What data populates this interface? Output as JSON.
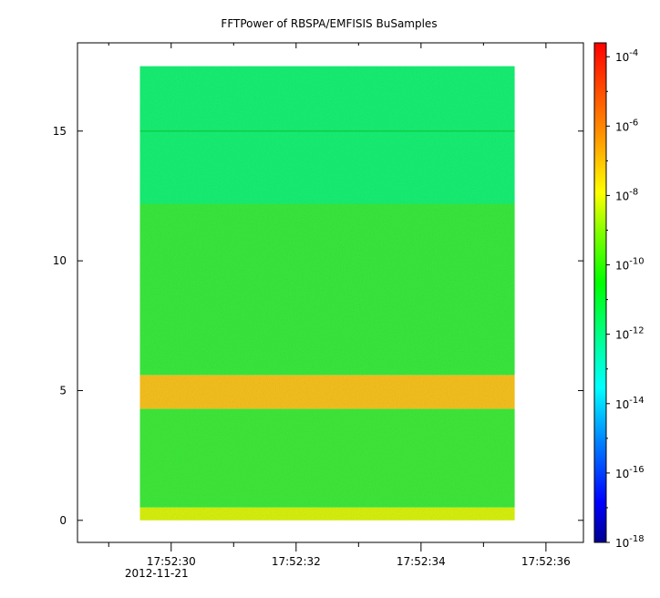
{
  "chart_data": {
    "type": "heatmap",
    "title": "FFTPower of RBSPA/EMFISIS  BuSamples",
    "xlabel": "",
    "ylabel": "",
    "x_ticks": [
      {
        "label": "17:52:30",
        "sublabel": "2012-11-21",
        "value": 30
      },
      {
        "label": "17:52:32",
        "value": 32
      },
      {
        "label": "17:52:34",
        "value": 34
      },
      {
        "label": "17:52:36",
        "value": 36
      }
    ],
    "x_minor_ticks": [
      29,
      31,
      33,
      35
    ],
    "xlim": [
      28.5,
      36.6
    ],
    "data_x_range": [
      29.5,
      35.5
    ],
    "y_ticks": [
      0,
      5,
      10,
      15
    ],
    "ylim": [
      -0.85,
      18.4
    ],
    "data_y_range": [
      0,
      17.5
    ],
    "colorbar": {
      "scale": "log",
      "min_exponent": -18,
      "max_exponent": -3.6,
      "tick_exponents": [
        -4,
        -6,
        -8,
        -10,
        -12,
        -14,
        -16,
        -18
      ],
      "tick_base": "10",
      "colors": [
        "#00008f",
        "#0000ff",
        "#0080ff",
        "#00ffff",
        "#00ff80",
        "#00ff00",
        "#80ff00",
        "#ffff00",
        "#ff8000",
        "#ff0000"
      ]
    },
    "bands": [
      {
        "y_range": [
          0,
          0.5
        ],
        "log_power": -8.8,
        "color": "#d8f010"
      },
      {
        "y_range": [
          0.5,
          4.3
        ],
        "log_power": -10.7,
        "color": "#3fe83a"
      },
      {
        "y_range": [
          4.3,
          5.6
        ],
        "log_power": -7.6,
        "color": "#f5c020"
      },
      {
        "y_range": [
          5.6,
          12.2
        ],
        "log_power": -10.8,
        "color": "#3ae83e"
      },
      {
        "y_range": [
          12.2,
          17.5
        ],
        "log_power": -12.6,
        "color": "#19ef73"
      },
      {
        "y_range": [
          14.97,
          15.03
        ],
        "log_power": -11.5,
        "color": "#0dd84c"
      }
    ]
  }
}
